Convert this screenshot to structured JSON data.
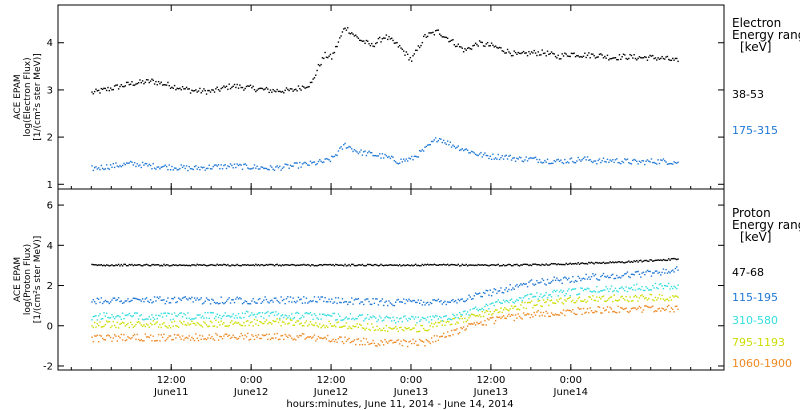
{
  "chart_data": [
    {
      "type": "scatter",
      "panel": "electron",
      "ylabel_lines": [
        "ACE EPAM",
        "log(Electron Flux)",
        "[1/(cm²s ster MeV)]"
      ],
      "ylim": [
        0.9,
        4.8
      ],
      "yticks": [
        1,
        2,
        3,
        4
      ],
      "legend_title": [
        "Electron",
        "Energy ranges",
        "[keV]"
      ],
      "series": [
        {
          "name": "38-53",
          "color": "#000000",
          "x": [
            0,
            3,
            6,
            9,
            12,
            15,
            18,
            21,
            24,
            27,
            30,
            33,
            34,
            35,
            36,
            38,
            40,
            42,
            44,
            46,
            48,
            50,
            52,
            54,
            56,
            58,
            60,
            62,
            64,
            66,
            68,
            70,
            72,
            74,
            76,
            78,
            80,
            82,
            84,
            86,
            88
          ],
          "y": [
            2.95,
            3.05,
            3.15,
            3.2,
            3.1,
            3.0,
            2.98,
            3.1,
            3.05,
            3.0,
            3.0,
            3.15,
            3.5,
            3.75,
            3.7,
            4.35,
            4.1,
            3.95,
            4.15,
            3.95,
            3.65,
            4.15,
            4.25,
            4.05,
            3.85,
            4.0,
            3.95,
            3.85,
            3.75,
            3.8,
            3.8,
            3.72,
            3.78,
            3.75,
            3.75,
            3.7,
            3.72,
            3.7,
            3.7,
            3.68,
            3.62
          ]
        },
        {
          "name": "175-315",
          "color": "#1f77d4",
          "x": [
            0,
            3,
            6,
            9,
            12,
            15,
            18,
            21,
            24,
            27,
            30,
            33,
            35,
            36,
            38,
            40,
            42,
            44,
            46,
            48,
            50,
            52,
            54,
            56,
            58,
            60,
            62,
            64,
            66,
            68,
            70,
            72,
            74,
            76,
            78,
            80,
            82,
            84,
            86,
            88
          ],
          "y": [
            1.35,
            1.4,
            1.45,
            1.4,
            1.38,
            1.35,
            1.38,
            1.4,
            1.38,
            1.35,
            1.4,
            1.45,
            1.5,
            1.55,
            1.85,
            1.7,
            1.65,
            1.6,
            1.5,
            1.55,
            1.75,
            2.0,
            1.85,
            1.75,
            1.65,
            1.6,
            1.6,
            1.55,
            1.55,
            1.52,
            1.5,
            1.52,
            1.55,
            1.5,
            1.52,
            1.5,
            1.48,
            1.5,
            1.5,
            1.48
          ]
        }
      ]
    },
    {
      "type": "scatter",
      "panel": "proton",
      "ylabel_lines": [
        "ACE EPAM",
        "log(Proton Flux)",
        "[1/(cm²s ster MeV)]"
      ],
      "ylim": [
        -2.2,
        6.8
      ],
      "yticks": [
        -2,
        0,
        2,
        4,
        6
      ],
      "legend_title": [
        "Proton",
        "Energy ranges",
        "[keV]"
      ],
      "xlabel": "hours:minutes, June 11, 2014 - June 14, 2014",
      "xticks": [
        {
          "x": 12,
          "top": "12:00",
          "bottom": "June11"
        },
        {
          "x": 24,
          "top": "0:00",
          "bottom": "June12"
        },
        {
          "x": 36,
          "top": "12:00",
          "bottom": "June12"
        },
        {
          "x": 48,
          "top": "0:00",
          "bottom": "June13"
        },
        {
          "x": 60,
          "top": "12:00",
          "bottom": "June13"
        },
        {
          "x": 72,
          "top": "0:00",
          "bottom": "June14"
        }
      ],
      "series": [
        {
          "name": "47-68",
          "color": "#000000",
          "x": [
            0,
            5,
            10,
            15,
            20,
            25,
            30,
            35,
            40,
            45,
            50,
            55,
            60,
            65,
            70,
            75,
            80,
            85,
            88
          ],
          "y": [
            3.05,
            3.05,
            3.05,
            3.05,
            3.05,
            3.05,
            3.05,
            3.05,
            3.05,
            3.05,
            3.05,
            3.05,
            3.05,
            3.05,
            3.1,
            3.15,
            3.2,
            3.3,
            3.35
          ]
        },
        {
          "name": "115-195",
          "color": "#1f77d4",
          "x": [
            0,
            5,
            10,
            15,
            20,
            25,
            30,
            35,
            40,
            45,
            50,
            55,
            60,
            65,
            70,
            75,
            80,
            85,
            88
          ],
          "y": [
            1.3,
            1.3,
            1.3,
            1.3,
            1.3,
            1.3,
            1.3,
            1.3,
            1.25,
            1.2,
            1.2,
            1.3,
            1.7,
            2.1,
            2.3,
            2.45,
            2.55,
            2.7,
            2.8
          ]
        },
        {
          "name": "310-580",
          "color": "#33dddd",
          "x": [
            0,
            5,
            10,
            15,
            20,
            25,
            30,
            35,
            40,
            45,
            50,
            55,
            60,
            65,
            70,
            75,
            80,
            85,
            88
          ],
          "y": [
            0.5,
            0.5,
            0.5,
            0.5,
            0.55,
            0.6,
            0.55,
            0.5,
            0.45,
            0.35,
            0.35,
            0.55,
            1.1,
            1.45,
            1.65,
            1.8,
            1.9,
            2.0,
            2.05
          ]
        },
        {
          "name": "795-1193",
          "color": "#ccdd00",
          "x": [
            0,
            5,
            10,
            15,
            20,
            25,
            30,
            35,
            40,
            45,
            50,
            55,
            60,
            65,
            70,
            75,
            80,
            85,
            88
          ],
          "y": [
            0.1,
            0.1,
            0.1,
            0.1,
            0.15,
            0.2,
            0.2,
            0.1,
            0.0,
            -0.1,
            -0.1,
            0.3,
            0.75,
            1.05,
            1.25,
            1.35,
            1.4,
            1.45,
            1.45
          ]
        },
        {
          "name": "1060-1900",
          "color": "#ee8822",
          "x": [
            0,
            5,
            10,
            15,
            20,
            25,
            30,
            35,
            40,
            45,
            50,
            55,
            60,
            65,
            70,
            75,
            80,
            85,
            88
          ],
          "y": [
            -0.6,
            -0.55,
            -0.55,
            -0.55,
            -0.5,
            -0.5,
            -0.5,
            -0.6,
            -0.75,
            -0.85,
            -0.8,
            -0.2,
            0.3,
            0.55,
            0.7,
            0.8,
            0.85,
            0.9,
            0.85
          ]
        }
      ]
    }
  ]
}
